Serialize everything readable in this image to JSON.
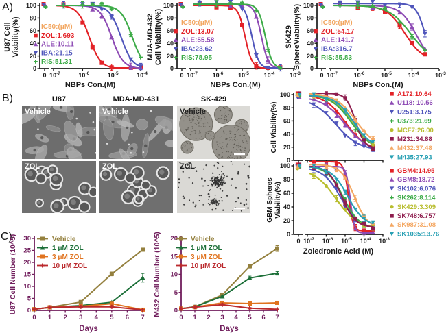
{
  "panels": {
    "a_label": "A)",
    "b_label": "B)",
    "c_label": "C)"
  },
  "colors": {
    "ic50_header": "#f2a55e",
    "axis": "#1a1a1a",
    "panel_c_axis": "#701d5c",
    "zol_red": "#e32227",
    "ale_purple": "#8d4ab4",
    "iba_blue": "#4f55bb",
    "ris_green": "#3cab47"
  },
  "chart_data": [
    {
      "id": "u87-dose",
      "type": "line",
      "subtype": "dose-response",
      "ylabel_lines": [
        "U87 Cell",
        "Viability(%)"
      ],
      "xlabel": "NBPs Con.(M)",
      "legend_header": "IC50:(μM)",
      "zero_tick": "0",
      "decades": [
        -7,
        -4
      ],
      "ylim": [
        0,
        100
      ],
      "yticks": [
        0,
        20,
        40,
        60,
        80,
        100
      ],
      "show_xticks": true,
      "curve_end": 0.0001,
      "doses": [
        2.2e-07,
        1e-06,
        2.2e-06,
        4.6e-06,
        1e-05,
        4.6e-05,
        0.0001
      ],
      "series": [
        {
          "label": "ZOL:1.693",
          "ic50_uM": 1.693,
          "hill": 2.2,
          "top": 100,
          "bottom": 0,
          "color": "#e32227",
          "marker": "square"
        },
        {
          "label": "ALE:10.11",
          "ic50_uM": 10.11,
          "hill": 2.2,
          "top": 100,
          "bottom": 0,
          "color": "#8d4ab4",
          "marker": "tri-up"
        },
        {
          "label": "IBA:21.15",
          "ic50_uM": 21.15,
          "hill": 2.2,
          "top": 100,
          "bottom": 0,
          "color": "#4f55bb",
          "marker": "tri-down"
        },
        {
          "label": "RIS:51.31",
          "ic50_uM": 51.31,
          "hill": 2.2,
          "top": 100,
          "bottom": 0,
          "color": "#3cab47",
          "marker": "plus"
        }
      ]
    },
    {
      "id": "mda-dose",
      "type": "line",
      "subtype": "dose-response",
      "ylabel_lines": [
        "MDA-MD-432",
        "Cell Viability(%)"
      ],
      "xlabel": "NBPs Con.(M)",
      "legend_header": "IC50:(μM)",
      "zero_tick": "0",
      "decades": [
        -7,
        -3
      ],
      "ylim": [
        0,
        100
      ],
      "yticks": [
        0,
        20,
        40,
        60,
        80,
        100
      ],
      "show_xticks": true,
      "curve_end": 0.0003,
      "doses": [
        2.2e-07,
        1e-06,
        3.5e-06,
        1e-05,
        3.5e-05,
        0.0001,
        0.0003
      ],
      "series": [
        {
          "label": "ZOL:13.07",
          "ic50_uM": 13.07,
          "hill": 3.2,
          "top": 100,
          "bottom": 0,
          "color": "#e32227",
          "marker": "square"
        },
        {
          "label": "ALE:55.58",
          "ic50_uM": 55.58,
          "hill": 3.2,
          "top": 102,
          "bottom": 0,
          "color": "#8d4ab4",
          "marker": "tri-up"
        },
        {
          "label": "IBA:23.62",
          "ic50_uM": 23.62,
          "hill": 3.2,
          "top": 103,
          "bottom": 0,
          "color": "#4f55bb",
          "marker": "tri-down"
        },
        {
          "label": "RIS:78.95",
          "ic50_uM": 78.95,
          "hill": 3.2,
          "top": 102,
          "bottom": 0,
          "color": "#3cab47",
          "marker": "plus"
        }
      ]
    },
    {
      "id": "sk429-dose",
      "type": "line",
      "subtype": "dose-response",
      "ylabel_lines": [
        "SK429",
        "SphereViability(%)"
      ],
      "xlabel": "NBPs Con.(M)",
      "legend_header": "IC50:(μM)",
      "zero_tick": "0",
      "decades": [
        -7,
        -3
      ],
      "ylim": [
        0,
        100
      ],
      "yticks": [
        0,
        20,
        40,
        60,
        80,
        100
      ],
      "show_xticks": true,
      "curve_end": 0.0003,
      "doses": [
        2.2e-07,
        1e-06,
        3.5e-06,
        1e-05,
        3.5e-05,
        0.0001,
        0.0003
      ],
      "series": [
        {
          "label": "ZOL:54.17",
          "ic50_uM": 54.17,
          "hill": 1.3,
          "top": 100,
          "bottom": 12,
          "color": "#e32227",
          "marker": "square"
        },
        {
          "label": "ALE:141.7",
          "ic50_uM": 141.7,
          "hill": 1.5,
          "top": 100,
          "bottom": 8,
          "color": "#8d4ab4",
          "marker": "tri-up"
        },
        {
          "label": "IBA:316.7",
          "ic50_uM": 316.7,
          "hill": 2.6,
          "top": 103,
          "bottom": 0,
          "color": "#4f55bb",
          "marker": "tri-down"
        },
        {
          "label": "RIS:85.83",
          "ic50_uM": 85.83,
          "hill": 1.1,
          "top": 100,
          "bottom": 12,
          "color": "#3cab47",
          "marker": "plus"
        }
      ]
    },
    {
      "id": "cell-vb",
      "type": "line",
      "subtype": "dose-response",
      "ylabel_lines": [
        "Cell  Viability(%)"
      ],
      "xlabel": "",
      "zero_tick": "0",
      "decades": [
        -7,
        -3
      ],
      "ylim": [
        0,
        100
      ],
      "yticks": [
        0,
        20,
        40,
        60,
        80,
        100
      ],
      "show_xticks": false,
      "curve_end": 0.0003,
      "doses": [
        2.2e-07,
        1e-06,
        3.5e-06,
        1e-05,
        3.5e-05,
        0.0001,
        0.0003
      ],
      "series": [
        {
          "label": "A172:10.64",
          "ic50_uM": 10.64,
          "hill": 0.8,
          "top": 100,
          "bottom": 15,
          "color": "#e32227",
          "marker": "square"
        },
        {
          "label": "U118: 10.56",
          "ic50_uM": 10.56,
          "hill": 0.7,
          "top": 97,
          "bottom": 12,
          "color": "#8d4ab4",
          "marker": "tri-up"
        },
        {
          "label": "U251:3.175",
          "ic50_uM": 3.175,
          "hill": 0.7,
          "top": 95,
          "bottom": 15,
          "color": "#4f55bb",
          "marker": "tri-down"
        },
        {
          "label": "U373:21.69",
          "ic50_uM": 21.69,
          "hill": 0.8,
          "top": 100,
          "bottom": 15,
          "color": "#3cab47",
          "marker": "plus"
        },
        {
          "label": "MCF7:26.00",
          "ic50_uM": 26.0,
          "hill": 0.8,
          "top": 101,
          "bottom": 15,
          "color": "#b8bd2e",
          "marker": "circle"
        },
        {
          "label": "M231:34.88",
          "ic50_uM": 34.88,
          "hill": 1.8,
          "top": 102,
          "bottom": 18,
          "color": "#8e1d4e",
          "marker": "square"
        },
        {
          "label": "M432:37.48",
          "ic50_uM": 37.48,
          "hill": 0.8,
          "top": 102,
          "bottom": 18,
          "color": "#f4a762",
          "marker": "tri-up"
        },
        {
          "label": "M435:27.93",
          "ic50_uM": 27.93,
          "hill": 0.9,
          "top": 99,
          "bottom": 18,
          "color": "#28a0b4",
          "marker": "tri-down"
        }
      ]
    },
    {
      "id": "gbm-vb",
      "type": "line",
      "subtype": "dose-response",
      "ylabel_lines": [
        "GBM Spheres",
        "Viability(%)"
      ],
      "xlabel": "Zoledronic Acid (M)",
      "zero_tick": "0",
      "decades": [
        -7,
        -3
      ],
      "ylim": [
        0,
        100
      ],
      "yticks": [
        0,
        20,
        40,
        60,
        80,
        100
      ],
      "show_xticks": true,
      "curve_end": 0.0003,
      "doses": [
        2.2e-07,
        1e-06,
        3.5e-06,
        1e-05,
        3.5e-05,
        0.0001,
        0.0003
      ],
      "series": [
        {
          "label": "GBM4:14.95",
          "ic50_uM": 14.95,
          "hill": 3.5,
          "top": 106,
          "bottom": 5,
          "color": "#e32227",
          "marker": "square"
        },
        {
          "label": "GBM8:18.72",
          "ic50_uM": 18.72,
          "hill": 4.0,
          "top": 99,
          "bottom": 2,
          "color": "#8d4ab4",
          "marker": "tri-up"
        },
        {
          "label": "SK102:6.076",
          "ic50_uM": 6.076,
          "hill": 0.9,
          "top": 98,
          "bottom": 8,
          "color": "#4f55bb",
          "marker": "tri-down"
        },
        {
          "label": "SK262:8.114",
          "ic50_uM": 8.114,
          "hill": 1.0,
          "top": 100,
          "bottom": 8,
          "color": "#3cab47",
          "marker": "plus"
        },
        {
          "label": "SK429:3.309",
          "ic50_uM": 3.309,
          "hill": 0.75,
          "top": 96,
          "bottom": 8,
          "color": "#b8bd2e",
          "marker": "circle"
        },
        {
          "label": "SK748:6.757",
          "ic50_uM": 6.757,
          "hill": 1.2,
          "top": 100,
          "bottom": 10,
          "color": "#8e1d4e",
          "marker": "square"
        },
        {
          "label": "SK987:31.08",
          "ic50_uM": 31.08,
          "hill": 1.2,
          "top": 102,
          "bottom": 8,
          "color": "#f4a762",
          "marker": "tri-up"
        },
        {
          "label": "SK1035:13.76",
          "ic50_uM": 13.76,
          "hill": 1.0,
          "top": 99,
          "bottom": 12,
          "color": "#28a0b4",
          "marker": "tri-down"
        }
      ]
    },
    {
      "id": "u87-growth",
      "type": "line",
      "subtype": "growth",
      "ylabel": "U87 Cell Number (10^5)",
      "xlabel": "Days",
      "ylim": [
        0,
        30
      ],
      "yticks": [
        0,
        5,
        10,
        15,
        20,
        25,
        30
      ],
      "xticks": [
        0,
        1,
        2,
        3,
        4,
        5,
        6,
        7
      ],
      "x": [
        0,
        1,
        3,
        5,
        7
      ],
      "series": [
        {
          "label": "Vehicle",
          "color": "#94803e",
          "marker": "square",
          "values": [
            0.5,
            1.3,
            3.5,
            15.2,
            25.3
          ],
          "errs": [
            0,
            0,
            0.4,
            0.8,
            0.6
          ]
        },
        {
          "label": "1 μM ZOL",
          "color": "#1c6f38",
          "marker": "tri-up",
          "values": [
            0.5,
            1.3,
            2.0,
            3.4,
            13.6
          ],
          "errs": [
            0,
            0,
            0.3,
            0.4,
            1.8
          ]
        },
        {
          "label": "3 μM ZOL",
          "color": "#e0731f",
          "marker": "square",
          "values": [
            0.5,
            1.3,
            1.7,
            2.8,
            0.3
          ],
          "errs": [
            0,
            0,
            0.3,
            0.5,
            0.2
          ]
        },
        {
          "label": "10 μM ZOL",
          "color": "#bb2a2e",
          "marker": "plus",
          "values": [
            0.5,
            1.3,
            1.5,
            1.5,
            0.2
          ],
          "errs": [
            0,
            0.2,
            0.3,
            0.3,
            0.1
          ]
        }
      ]
    },
    {
      "id": "m432-growth",
      "type": "line",
      "subtype": "growth",
      "ylabel": "M432 Cell Number (10^5)",
      "xlabel": "Days",
      "ylim": [
        0,
        20
      ],
      "yticks": [
        0,
        5,
        10,
        15,
        20
      ],
      "xticks": [
        0,
        1,
        2,
        3,
        4,
        5,
        6,
        7
      ],
      "x": [
        0,
        1,
        3,
        5,
        7
      ],
      "series": [
        {
          "label": "Vehicle",
          "color": "#94803e",
          "marker": "square",
          "values": [
            0.5,
            1.0,
            4.3,
            12.3,
            17.2
          ],
          "errs": [
            0,
            0,
            0.4,
            0.5,
            0.8
          ]
        },
        {
          "label": "1 μM ZOL",
          "color": "#1c6f38",
          "marker": "tri-up",
          "values": [
            0.5,
            1.0,
            3.9,
            9.0,
            10.3
          ],
          "errs": [
            0,
            0,
            0.3,
            0.5,
            0.5
          ]
        },
        {
          "label": "3 μM ZOL",
          "color": "#e0731f",
          "marker": "square",
          "values": [
            0.5,
            0.9,
            2.1,
            1.9,
            2.1
          ],
          "errs": [
            0,
            0,
            0.3,
            0.3,
            0.3
          ]
        },
        {
          "label": "10 μM ZOL",
          "color": "#bb2a2e",
          "marker": "plus",
          "values": [
            0.5,
            0.9,
            1.6,
            0.6,
            0.3
          ],
          "errs": [
            0,
            0,
            0.3,
            0.2,
            0.1
          ]
        }
      ]
    }
  ],
  "panel_b": {
    "column_titles": [
      "U87",
      "MDA-MD-431",
      "SK-429"
    ],
    "images": [
      {
        "label": "Vehicle",
        "kind": "cells",
        "text_color": "#ffffff"
      },
      {
        "label": "Vehicle",
        "kind": "cells",
        "text_color": "#ffffff"
      },
      {
        "label": "Vehicle",
        "kind": "spheres",
        "text_color": "#222222"
      },
      {
        "label": "ZOL",
        "kind": "round",
        "text_color": "#ffffff"
      },
      {
        "label": "ZOL",
        "kind": "round",
        "text_color": "#ffffff"
      },
      {
        "label": "ZOL",
        "kind": "dots",
        "text_color": "#222222"
      }
    ]
  }
}
